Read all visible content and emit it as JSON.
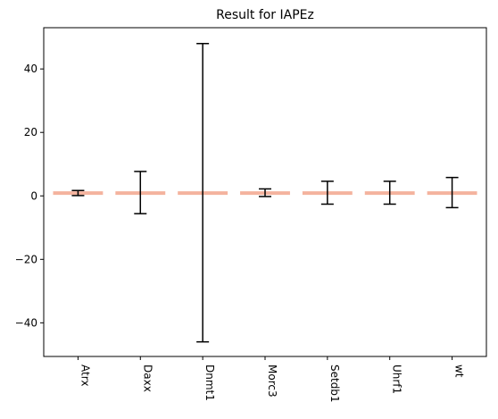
{
  "chart_data": {
    "type": "bar",
    "title": "Result for IAPEz",
    "xlabel": "",
    "ylabel": "",
    "categories": [
      "Atrx",
      "Daxx",
      "Dnmt1",
      "Morc3",
      "Setdb1",
      "Uhrf1",
      "wt"
    ],
    "values": [
      0.9,
      0.9,
      0.9,
      0.9,
      0.9,
      0.9,
      0.9
    ],
    "error_low": [
      0.1,
      -5.6,
      -46.0,
      -0.2,
      -2.6,
      -2.6,
      -3.7
    ],
    "error_high": [
      1.7,
      7.7,
      48.0,
      2.2,
      4.6,
      4.6,
      5.8
    ],
    "ylim": [
      -50.6,
      53.0
    ],
    "yticks": [
      -40,
      -20,
      0,
      20,
      40
    ],
    "tick_label_rotation": "vertical",
    "grid": false,
    "legend": "none",
    "colors": {
      "bar": "#f4b39e",
      "error_bar": "#000000",
      "axis": "#000000"
    }
  }
}
